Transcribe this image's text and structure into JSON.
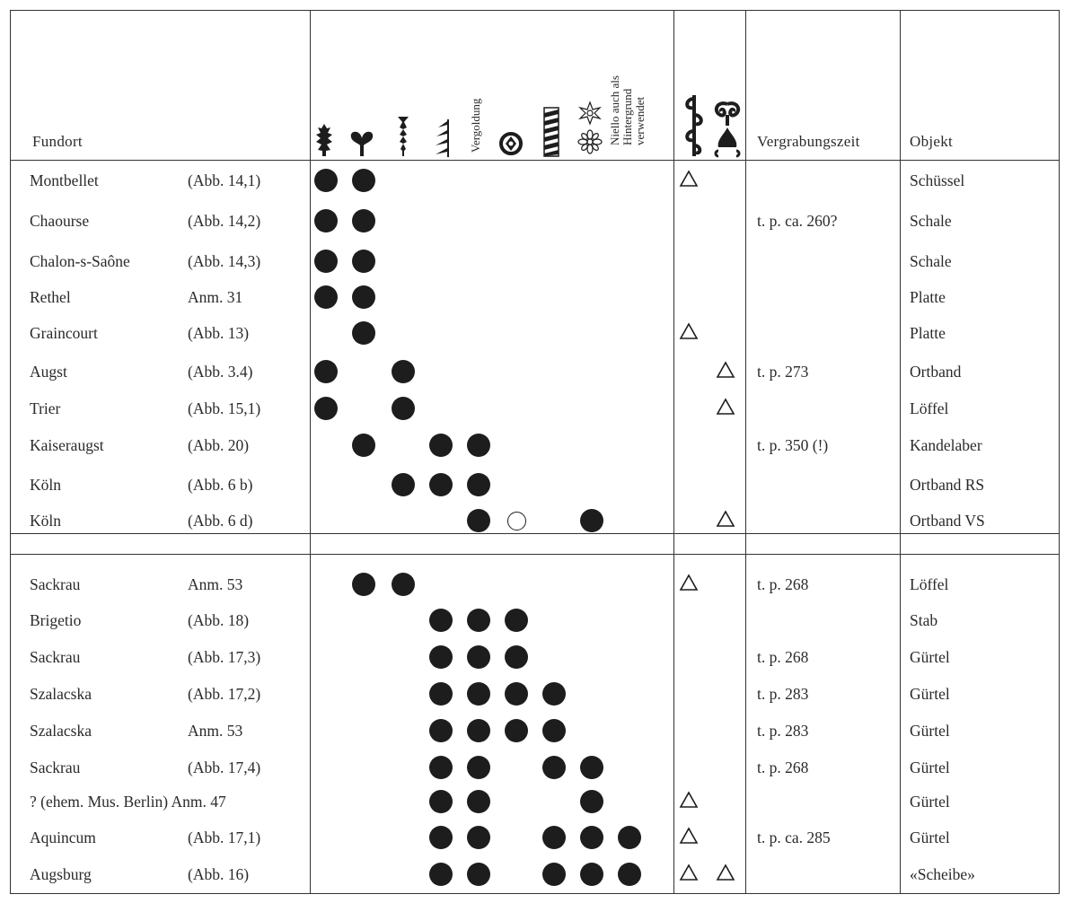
{
  "header": {
    "fundort": "Fundort",
    "vergoldung": "Vergoldung",
    "niello_line1": "Niello auch als",
    "niello_line2": "Hintergrund",
    "niello_line3": "verwendet",
    "vergrabungszeit": "Vergrabungszeit",
    "objekt": "Objekt"
  },
  "icons": [
    "leaf-ornament-icon",
    "heart-ornament-icon",
    "stem-ornament-icon",
    "hook-ornament-icon",
    "circle-cross-icon",
    "zigzag-band-icon",
    "flower-rosette-icon",
    "scroll-tendril-icon",
    "palmette-ornament-icon"
  ],
  "rows": [
    {
      "fundort": "Montbellet",
      "ref": "(Abb. 14,1)",
      "zeit": "",
      "objekt": "Schüssel"
    },
    {
      "fundort": "Chaourse",
      "ref": "(Abb. 14,2)",
      "zeit": "t. p. ca. 260?",
      "objekt": "Schale"
    },
    {
      "fundort": "Chalon-s-Saône",
      "ref": "(Abb. 14,3)",
      "zeit": "",
      "objekt": "Schale"
    },
    {
      "fundort": "Rethel",
      "ref": "Anm. 31",
      "zeit": "",
      "objekt": "Platte"
    },
    {
      "fundort": "Graincourt",
      "ref": "(Abb. 13)",
      "zeit": "",
      "objekt": "Platte"
    },
    {
      "fundort": "Augst",
      "ref": "(Abb. 3.4)",
      "zeit": "t. p. 273",
      "objekt": "Ortband"
    },
    {
      "fundort": "Trier",
      "ref": "(Abb. 15,1)",
      "zeit": "",
      "objekt": "Löffel"
    },
    {
      "fundort": "Kaiseraugst",
      "ref": "(Abb. 20)",
      "zeit": "t. p. 350 (!)",
      "objekt": "Kandelaber"
    },
    {
      "fundort": "Köln",
      "ref": "(Abb. 6 b)",
      "zeit": "",
      "objekt": "Ortband RS"
    },
    {
      "fundort": "Köln",
      "ref": "(Abb. 6 d)",
      "zeit": "",
      "objekt": "Ortband VS"
    },
    {
      "fundort": "Sackrau",
      "ref": "Anm. 53",
      "zeit": "t. p. 268",
      "objekt": "Löffel"
    },
    {
      "fundort": "Brigetio",
      "ref": "(Abb. 18)",
      "zeit": "",
      "objekt": "Stab"
    },
    {
      "fundort": "Sackrau",
      "ref": "(Abb. 17,3)",
      "zeit": "t. p. 268",
      "objekt": "Gürtel"
    },
    {
      "fundort": "Szalacska",
      "ref": "(Abb. 17,2)",
      "zeit": "t. p. 283",
      "objekt": "Gürtel"
    },
    {
      "fundort": "Szalacska",
      "ref": "Anm. 53",
      "zeit": "t. p. 283",
      "objekt": "Gürtel"
    },
    {
      "fundort": "Sackrau",
      "ref": "(Abb. 17,4)",
      "zeit": "t. p. 268",
      "objekt": "Gürtel"
    },
    {
      "fundort": "? (ehem. Mus. Berlin) Anm. 47",
      "ref": "",
      "zeit": "",
      "objekt": "Gürtel"
    },
    {
      "fundort": "Aquincum",
      "ref": "(Abb. 17,1)",
      "zeit": "t. p. ca. 285",
      "objekt": "Gürtel"
    },
    {
      "fundort": "Augsburg",
      "ref": "(Abb. 16)",
      "zeit": "",
      "objekt": "«Scheibe»"
    }
  ]
}
